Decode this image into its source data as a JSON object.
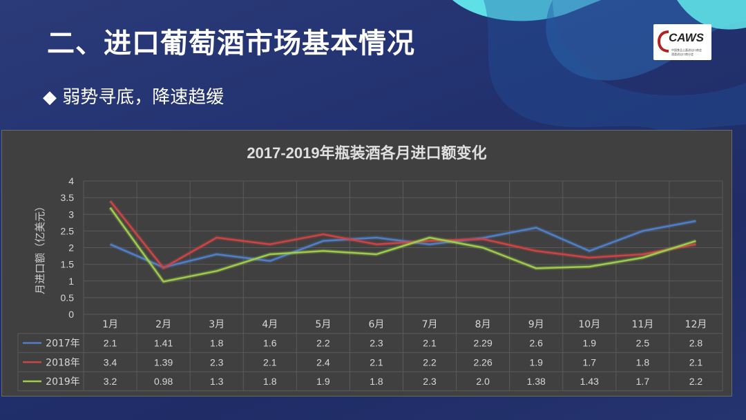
{
  "page": {
    "title": "二、进口葡萄酒市场基本情况",
    "subtitle_marker": "◆",
    "subtitle": "弱势寻底，降速趋缓"
  },
  "logo": {
    "text": "CAWS",
    "line1": "中国食品土畜进出口商会",
    "line2": "酒类进出口商分会"
  },
  "colors": {
    "accent_cyan": "#5fe0e6",
    "panel_bg": "#404040"
  },
  "chart_data": {
    "type": "line",
    "title": "2017-2019年瓶装酒各月进口额变化",
    "ylabel": "月进口额（亿美元）",
    "xlabel": "",
    "ylim": [
      0,
      4
    ],
    "yticks": [
      "0",
      "0.5",
      "1",
      "1.5",
      "2",
      "2.5",
      "3",
      "3.5",
      "4"
    ],
    "grid": true,
    "legend": "data-table",
    "categories": [
      "1月",
      "2月",
      "3月",
      "4月",
      "5月",
      "6月",
      "7月",
      "8月",
      "9月",
      "10月",
      "11月",
      "12月"
    ],
    "series": [
      {
        "name": "2017年",
        "color": "#4f7fc8",
        "values": [
          2.1,
          1.41,
          1.8,
          1.6,
          2.2,
          2.3,
          2.1,
          2.29,
          2.6,
          1.9,
          2.5,
          2.8
        ],
        "labels": [
          "2.1",
          "1.41",
          "1.8",
          "1.6",
          "2.2",
          "2.3",
          "2.1",
          "2.29",
          "2.6",
          "1.9",
          "2.5",
          "2.8"
        ]
      },
      {
        "name": "2018年",
        "color": "#cc4444",
        "values": [
          3.4,
          1.39,
          2.3,
          2.1,
          2.4,
          2.1,
          2.2,
          2.26,
          1.9,
          1.7,
          1.8,
          2.1
        ],
        "labels": [
          "3.4",
          "1.39",
          "2.3",
          "2.1",
          "2.4",
          "2.1",
          "2.2",
          "2.26",
          "1.9",
          "1.7",
          "1.8",
          "2.1"
        ]
      },
      {
        "name": "2019年",
        "color": "#9fcc4a",
        "values": [
          3.2,
          0.98,
          1.3,
          1.8,
          1.9,
          1.8,
          2.3,
          2.0,
          1.38,
          1.43,
          1.7,
          2.2
        ],
        "labels": [
          "3.2",
          "0.98",
          "1.3",
          "1.8",
          "1.9",
          "1.8",
          "2.3",
          "2.0",
          "1.38",
          "1.43",
          "1.7",
          "2.2"
        ]
      }
    ]
  }
}
